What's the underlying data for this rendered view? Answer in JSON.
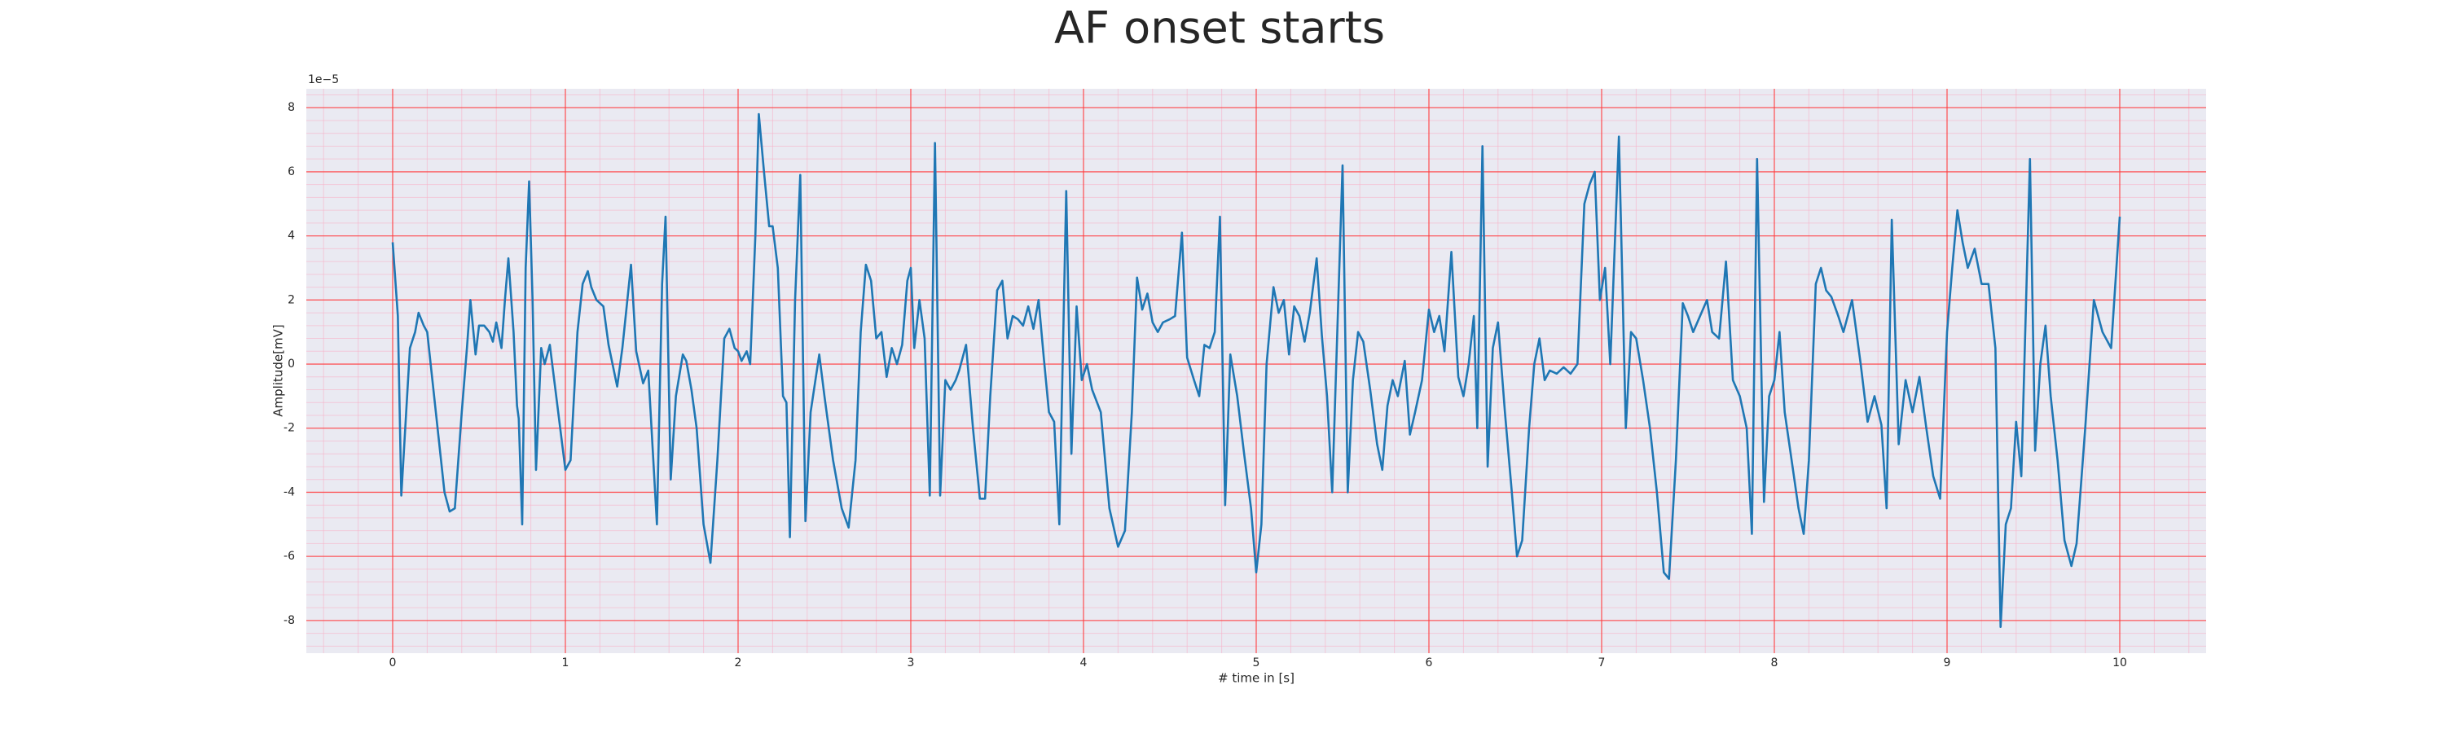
{
  "chart_data": {
    "type": "line",
    "title": "AF onset starts",
    "xlabel": "# time in [s]",
    "ylabel": "Amplitude[mV]",
    "offset_text": "1e−5",
    "xlim": [
      -0.5,
      10.5
    ],
    "ylim": [
      -9.02,
      8.59
    ],
    "xticks": [
      0,
      1,
      2,
      3,
      4,
      5,
      6,
      7,
      8,
      9,
      10
    ],
    "yticks": [
      -8,
      -6,
      -4,
      -2,
      0,
      2,
      4,
      6,
      8
    ],
    "grid": true,
    "grid_color": "#ff3b3b",
    "minor_grid": {
      "x": 0.2,
      "y": 0.4,
      "color": "#f7b3c8"
    },
    "background": "#eaeaf2",
    "color": "#1f77b4",
    "x": [
      0,
      0.03,
      0.05,
      0.1,
      0.13,
      0.15,
      0.18,
      0.2,
      0.23,
      0.27,
      0.3,
      0.33,
      0.36,
      0.4,
      0.43,
      0.45,
      0.48,
      0.5,
      0.53,
      0.56,
      0.58,
      0.6,
      0.63,
      0.65,
      0.67,
      0.7,
      0.72,
      0.73,
      0.75,
      0.77,
      0.79,
      0.81,
      0.83,
      0.86,
      0.88,
      0.91,
      0.94,
      0.97,
      1.0,
      1.03,
      1.07,
      1.1,
      1.13,
      1.15,
      1.18,
      1.22,
      1.25,
      1.3,
      1.33,
      1.38,
      1.41,
      1.45,
      1.48,
      1.53,
      1.56,
      1.58,
      1.61,
      1.64,
      1.68,
      1.7,
      1.73,
      1.76,
      1.8,
      1.84,
      1.88,
      1.92,
      1.95,
      1.98,
      2.0,
      2.02,
      2.05,
      2.07,
      2.1,
      2.12,
      2.15,
      2.18,
      2.2,
      2.23,
      2.26,
      2.28,
      2.3,
      2.33,
      2.36,
      2.39,
      2.42,
      2.47,
      2.5,
      2.55,
      2.6,
      2.64,
      2.68,
      2.71,
      2.74,
      2.77,
      2.8,
      2.83,
      2.86,
      2.89,
      2.92,
      2.95,
      2.98,
      3.0,
      3.02,
      3.05,
      3.08,
      3.11,
      3.14,
      3.17,
      3.2,
      3.23,
      3.26,
      3.28,
      3.32,
      3.36,
      3.4,
      3.43,
      3.46,
      3.5,
      3.53,
      3.56,
      3.59,
      3.62,
      3.65,
      3.68,
      3.71,
      3.74,
      3.77,
      3.8,
      3.83,
      3.86,
      3.9,
      3.93,
      3.96,
      3.99,
      4.02,
      4.05,
      4.1,
      4.15,
      4.2,
      4.24,
      4.28,
      4.31,
      4.34,
      4.37,
      4.4,
      4.43,
      4.46,
      4.5,
      4.53,
      4.57,
      4.6,
      4.64,
      4.67,
      4.7,
      4.73,
      4.76,
      4.79,
      4.82,
      4.85,
      4.89,
      4.93,
      4.97,
      5.0,
      5.03,
      5.06,
      5.1,
      5.13,
      5.16,
      5.19,
      5.22,
      5.25,
      5.28,
      5.31,
      5.35,
      5.38,
      5.41,
      5.44,
      5.5,
      5.53,
      5.56,
      5.59,
      5.62,
      5.66,
      5.7,
      5.73,
      5.76,
      5.79,
      5.82,
      5.86,
      5.89,
      5.92,
      5.96,
      6.0,
      6.03,
      6.06,
      6.09,
      6.13,
      6.17,
      6.2,
      6.23,
      6.26,
      6.28,
      6.31,
      6.34,
      6.37,
      6.4,
      6.44,
      6.48,
      6.51,
      6.54,
      6.58,
      6.61,
      6.64,
      6.67,
      6.7,
      6.74,
      6.78,
      6.82,
      6.86,
      6.9,
      6.93,
      6.96,
      6.99,
      7.02,
      7.05,
      7.1,
      7.14,
      7.17,
      7.2,
      7.24,
      7.28,
      7.32,
      7.36,
      7.39,
      7.43,
      7.47,
      7.5,
      7.53,
      7.57,
      7.61,
      7.64,
      7.68,
      7.72,
      7.76,
      7.8,
      7.84,
      7.87,
      7.9,
      7.94,
      7.97,
      8.0,
      8.03,
      8.06,
      8.1,
      8.14,
      8.17,
      8.2,
      8.24,
      8.27,
      8.3,
      8.33,
      8.37,
      8.4,
      8.45,
      8.5,
      8.54,
      8.58,
      8.62,
      8.65,
      8.68,
      8.72,
      8.76,
      8.8,
      8.84,
      8.88,
      8.92,
      8.96,
      9.0,
      9.03,
      9.06,
      9.09,
      9.12,
      9.16,
      9.2,
      9.24,
      9.28,
      9.31,
      9.34,
      9.37,
      9.4,
      9.43,
      9.48,
      9.51,
      9.54,
      9.57,
      9.6,
      9.64,
      9.68,
      9.72,
      9.75,
      9.8,
      9.85,
      9.9,
      9.95,
      10.0
    ],
    "values": [
      3.8,
      1.5,
      -4.1,
      0.5,
      1.0,
      1.6,
      1.2,
      1.0,
      -0.5,
      -2.5,
      -4.0,
      -4.6,
      -4.5,
      -1.5,
      0.5,
      2.0,
      0.3,
      1.2,
      1.2,
      1.0,
      0.7,
      1.3,
      0.5,
      2.0,
      3.3,
      1.0,
      -1.3,
      -1.7,
      -5.0,
      3.0,
      5.7,
      2.0,
      -3.3,
      0.5,
      0.0,
      0.6,
      -0.7,
      -2.0,
      -3.3,
      -3.0,
      1.0,
      2.5,
      2.9,
      2.4,
      2.0,
      1.8,
      0.6,
      -0.7,
      0.5,
      3.1,
      0.4,
      -0.6,
      -0.2,
      -5.0,
      2.5,
      4.6,
      -3.6,
      -1.0,
      0.3,
      0.1,
      -0.8,
      -2.0,
      -5.0,
      -6.2,
      -3.0,
      0.8,
      1.1,
      0.5,
      0.4,
      0.1,
      0.4,
      0.0,
      4.0,
      7.8,
      6.0,
      4.3,
      4.3,
      3.0,
      -1.0,
      -1.2,
      -5.4,
      2.0,
      5.9,
      -4.9,
      -1.5,
      0.3,
      -1.0,
      -3.0,
      -4.5,
      -5.1,
      -3.0,
      1.0,
      3.1,
      2.6,
      0.8,
      1.0,
      -0.4,
      0.5,
      0.0,
      0.6,
      2.6,
      3.0,
      0.5,
      2.0,
      0.8,
      -4.1,
      6.9,
      -4.1,
      -0.5,
      -0.8,
      -0.5,
      -0.2,
      0.6,
      -2.0,
      -4.2,
      -4.2,
      -1.0,
      2.3,
      2.6,
      0.8,
      1.5,
      1.4,
      1.2,
      1.8,
      1.1,
      2.0,
      0.2,
      -1.5,
      -1.8,
      -5.0,
      5.4,
      -2.8,
      1.8,
      -0.5,
      0.0,
      -0.8,
      -1.5,
      -4.5,
      -5.7,
      -5.2,
      -1.5,
      2.7,
      1.7,
      2.2,
      1.3,
      1.0,
      1.3,
      1.4,
      1.5,
      4.1,
      0.2,
      -0.5,
      -1.0,
      0.6,
      0.5,
      1.0,
      4.6,
      -4.4,
      0.3,
      -1.0,
      -2.8,
      -4.5,
      -6.5,
      -5.0,
      0.0,
      2.4,
      1.6,
      2.0,
      0.3,
      1.8,
      1.5,
      0.7,
      1.6,
      3.3,
      0.9,
      -1.0,
      -4.0,
      6.2,
      -4.0,
      -0.5,
      1.0,
      0.7,
      -0.8,
      -2.5,
      -3.3,
      -1.3,
      -0.5,
      -1.0,
      0.1,
      -2.2,
      -1.5,
      -0.5,
      1.7,
      1.0,
      1.5,
      0.4,
      3.5,
      -0.4,
      -1.0,
      0.0,
      1.5,
      -2.0,
      6.8,
      -3.2,
      0.5,
      1.3,
      -1.5,
      -4.0,
      -6.0,
      -5.5,
      -2.0,
      0.0,
      0.8,
      -0.5,
      -0.2,
      -0.3,
      -0.1,
      -0.3,
      0.0,
      5.0,
      5.6,
      6.0,
      2.0,
      3.0,
      0.0,
      7.1,
      -2.0,
      1.0,
      0.8,
      -0.5,
      -2.0,
      -4.0,
      -6.5,
      -6.7,
      -3.0,
      1.9,
      1.5,
      1.0,
      1.5,
      2.0,
      1.0,
      0.8,
      3.2,
      -0.5,
      -1.0,
      -2.0,
      -5.3,
      6.4,
      -4.3,
      -1.0,
      -0.5,
      1.0,
      -1.5,
      -3.0,
      -4.5,
      -5.3,
      -3.0,
      2.5,
      3.0,
      2.3,
      2.1,
      1.5,
      1.0,
      2.0,
      0.0,
      -1.8,
      -1.0,
      -1.9,
      -4.5,
      4.5,
      -2.5,
      -0.5,
      -1.5,
      -0.4,
      -2.0,
      -3.5,
      -4.2,
      1.0,
      3.0,
      4.8,
      3.8,
      3.0,
      3.6,
      2.5,
      2.5,
      0.5,
      -8.2,
      -5.0,
      -4.5,
      -1.8,
      -3.5,
      6.4,
      -2.7,
      0.0,
      1.2,
      -1.0,
      -3.0,
      -5.5,
      -6.3,
      -5.6,
      -2.0,
      2.0,
      1.0,
      0.5,
      4.6
    ]
  }
}
